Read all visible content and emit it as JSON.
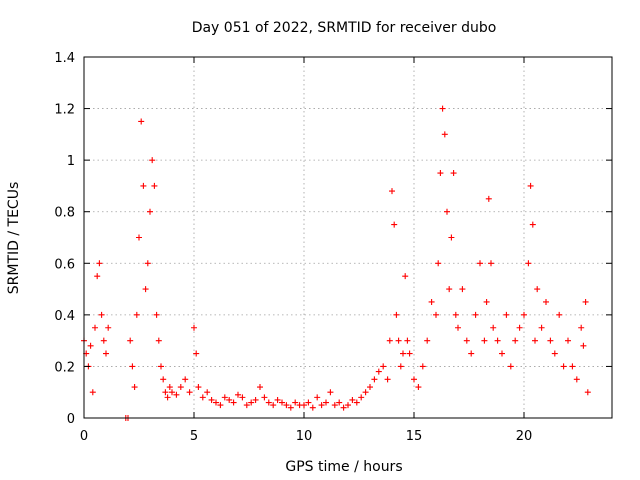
{
  "chart_data": {
    "type": "scatter",
    "title": "Day 051 of 2022, SRMTID for receiver dubo",
    "xlabel": "GPS time / hours",
    "ylabel": "SRMTID / TECUs",
    "xlim": [
      0,
      24
    ],
    "ylim": [
      0,
      1.4
    ],
    "xticks": [
      0,
      5,
      10,
      15,
      20
    ],
    "yticks": [
      0,
      0.2,
      0.4,
      0.6,
      0.8,
      1,
      1.2,
      1.4
    ],
    "x_tick_labels": [
      "0",
      "5",
      "10",
      "15",
      "20"
    ],
    "y_tick_labels": [
      "0",
      "0.2",
      "0.4",
      "0.6",
      "0.8",
      "1",
      "1.2",
      "1.4"
    ],
    "grid": true,
    "marker": "+",
    "color": "#ff0000",
    "series": [
      {
        "name": "SRMTID",
        "x": [
          0.0,
          0.1,
          0.2,
          0.3,
          0.4,
          0.5,
          0.6,
          0.7,
          0.8,
          0.9,
          1.0,
          1.1,
          1.9,
          2.0,
          2.1,
          2.2,
          2.3,
          2.4,
          2.5,
          2.6,
          2.7,
          2.8,
          2.9,
          3.0,
          3.1,
          3.2,
          3.3,
          3.4,
          3.5,
          3.6,
          3.7,
          3.8,
          3.9,
          4.0,
          4.2,
          4.4,
          4.6,
          4.8,
          5.0,
          5.1,
          5.2,
          5.4,
          5.6,
          5.8,
          6.0,
          6.2,
          6.4,
          6.6,
          6.8,
          7.0,
          7.2,
          7.4,
          7.6,
          7.8,
          8.0,
          8.2,
          8.4,
          8.6,
          8.8,
          9.0,
          9.2,
          9.4,
          9.6,
          9.8,
          10.0,
          10.2,
          10.4,
          10.6,
          10.8,
          11.0,
          11.2,
          11.4,
          11.6,
          11.8,
          12.0,
          12.2,
          12.4,
          12.6,
          12.8,
          13.0,
          13.2,
          13.4,
          13.6,
          13.8,
          13.9,
          14.0,
          14.1,
          14.2,
          14.3,
          14.4,
          14.5,
          14.6,
          14.7,
          14.8,
          15.0,
          15.2,
          15.4,
          15.6,
          15.8,
          16.0,
          16.1,
          16.2,
          16.3,
          16.4,
          16.5,
          16.6,
          16.7,
          16.8,
          16.9,
          17.0,
          17.2,
          17.4,
          17.6,
          17.8,
          18.0,
          18.2,
          18.3,
          18.4,
          18.5,
          18.6,
          18.8,
          19.0,
          19.2,
          19.4,
          19.6,
          19.8,
          20.0,
          20.2,
          20.3,
          20.4,
          20.5,
          20.6,
          20.8,
          21.0,
          21.2,
          21.4,
          21.6,
          21.8,
          22.0,
          22.2,
          22.4,
          22.6,
          22.7,
          22.8,
          22.9
        ],
        "y": [
          0.3,
          0.25,
          0.2,
          0.28,
          0.1,
          0.35,
          0.55,
          0.6,
          0.4,
          0.3,
          0.25,
          0.35,
          0.0,
          0.0,
          0.3,
          0.2,
          0.12,
          0.4,
          0.7,
          1.15,
          0.9,
          0.5,
          0.6,
          0.8,
          1.0,
          0.9,
          0.4,
          0.3,
          0.2,
          0.15,
          0.1,
          0.08,
          0.12,
          0.1,
          0.09,
          0.12,
          0.15,
          0.1,
          0.35,
          0.25,
          0.12,
          0.08,
          0.1,
          0.07,
          0.06,
          0.05,
          0.08,
          0.07,
          0.06,
          0.09,
          0.08,
          0.05,
          0.06,
          0.07,
          0.12,
          0.08,
          0.06,
          0.05,
          0.07,
          0.06,
          0.05,
          0.04,
          0.06,
          0.05,
          0.05,
          0.06,
          0.04,
          0.08,
          0.05,
          0.06,
          0.1,
          0.05,
          0.06,
          0.04,
          0.05,
          0.07,
          0.06,
          0.08,
          0.1,
          0.12,
          0.15,
          0.18,
          0.2,
          0.15,
          0.3,
          0.88,
          0.75,
          0.4,
          0.3,
          0.2,
          0.25,
          0.55,
          0.3,
          0.25,
          0.15,
          0.12,
          0.2,
          0.3,
          0.45,
          0.4,
          0.6,
          0.95,
          1.2,
          1.1,
          0.8,
          0.5,
          0.7,
          0.95,
          0.4,
          0.35,
          0.5,
          0.3,
          0.25,
          0.4,
          0.6,
          0.3,
          0.45,
          0.85,
          0.6,
          0.35,
          0.3,
          0.25,
          0.4,
          0.2,
          0.3,
          0.35,
          0.4,
          0.6,
          0.9,
          0.75,
          0.3,
          0.5,
          0.35,
          0.45,
          0.3,
          0.25,
          0.4,
          0.2,
          0.3,
          0.2,
          0.15,
          0.35,
          0.28,
          0.45,
          0.1
        ]
      }
    ]
  }
}
